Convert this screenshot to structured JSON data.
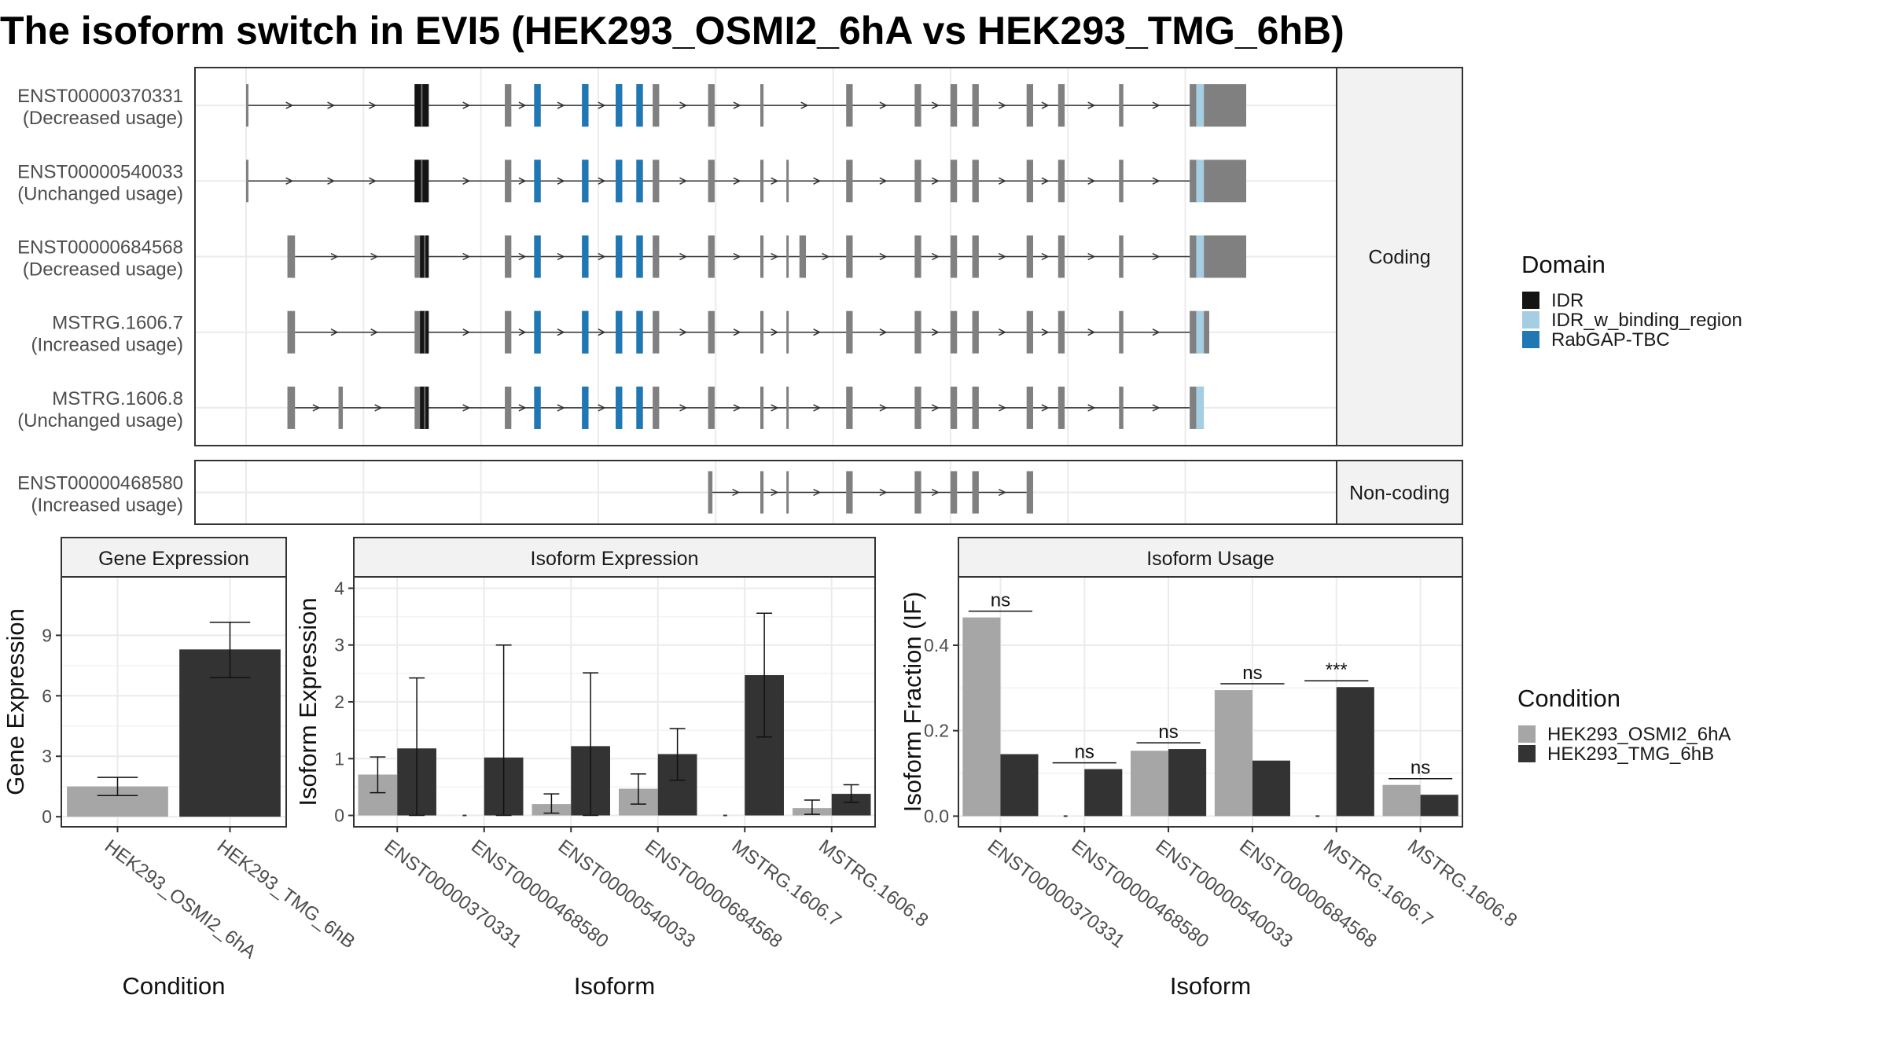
{
  "title": "The isoform switch in EVI5 (HEK293_OSMI2_6hA vs HEK293_TMG_6hB)",
  "colors": {
    "intron": "#333333",
    "exon": "#808080",
    "IDR": "#141414",
    "IDR_w_binding_region": "#a6cee3",
    "RabGAP-TBC": "#1f78b4",
    "HEK293_OSMI2_6hA": "#a6a6a6",
    "HEK293_TMG_6hB": "#333333",
    "grid": "#ebebeb",
    "strip": "#f2f2f2"
  },
  "structure": {
    "facets": [
      "Coding",
      "Non-coding"
    ],
    "coding": [
      {
        "label": "ENST00000370331\n(Decreased usage)",
        "tx": "ENST00000370331",
        "exons": [
          [
            0,
            0.2
          ],
          [
            15.5,
            16.8
          ],
          [
            23.8,
            24.4
          ],
          [
            26.5,
            27.1
          ],
          [
            30.9,
            31.5
          ],
          [
            34.0,
            34.6
          ],
          [
            35.9,
            36.5
          ],
          [
            37.4,
            38.0
          ],
          [
            42.5,
            43.1
          ],
          [
            47.3,
            47.6
          ],
          [
            55.2,
            55.8
          ],
          [
            61.5,
            62.1
          ],
          [
            64.8,
            65.4
          ],
          [
            66.8,
            67.4
          ],
          [
            71.8,
            72.4
          ],
          [
            74.7,
            75.3
          ],
          [
            80.3,
            80.7
          ],
          [
            86.8,
            87.6
          ],
          [
            88.1,
            92.0
          ]
        ],
        "domains": [
          [
            "IDR",
            15.5,
            16.8
          ],
          [
            "RabGAP-TBC",
            26.5,
            27.1
          ],
          [
            "RabGAP-TBC",
            30.9,
            31.5
          ],
          [
            "RabGAP-TBC",
            34.0,
            34.6
          ],
          [
            "RabGAP-TBC",
            35.9,
            36.5
          ],
          [
            "IDR_w_binding_region",
            87.4,
            88.1
          ]
        ]
      },
      {
        "label": "ENST00000540033\n(Unchanged usage)",
        "tx": "ENST00000540033",
        "exons": [
          [
            0,
            0.2
          ],
          [
            15.5,
            16.8
          ],
          [
            23.8,
            24.4
          ],
          [
            26.5,
            27.1
          ],
          [
            30.9,
            31.5
          ],
          [
            34.0,
            34.6
          ],
          [
            35.9,
            36.5
          ],
          [
            37.4,
            38.0
          ],
          [
            42.5,
            43.1
          ],
          [
            47.3,
            47.6
          ],
          [
            49.7,
            49.9
          ],
          [
            55.2,
            55.8
          ],
          [
            61.5,
            62.1
          ],
          [
            64.8,
            65.4
          ],
          [
            66.8,
            67.4
          ],
          [
            71.8,
            72.4
          ],
          [
            74.7,
            75.3
          ],
          [
            80.3,
            80.7
          ],
          [
            86.8,
            87.6
          ],
          [
            88.1,
            92.0
          ]
        ],
        "domains": [
          [
            "IDR",
            15.5,
            16.8
          ],
          [
            "RabGAP-TBC",
            26.5,
            27.1
          ],
          [
            "RabGAP-TBC",
            30.9,
            31.5
          ],
          [
            "RabGAP-TBC",
            34.0,
            34.6
          ],
          [
            "RabGAP-TBC",
            35.9,
            36.5
          ],
          [
            "IDR_w_binding_region",
            87.4,
            88.1
          ]
        ]
      },
      {
        "label": "ENST00000684568\n(Decreased usage)",
        "tx": "ENST00000684568",
        "exons": [
          [
            3.8,
            4.5
          ],
          [
            15.5,
            16.8
          ],
          [
            23.8,
            24.4
          ],
          [
            26.5,
            27.1
          ],
          [
            30.9,
            31.5
          ],
          [
            34.0,
            34.6
          ],
          [
            35.9,
            36.5
          ],
          [
            37.4,
            38.0
          ],
          [
            42.5,
            43.1
          ],
          [
            47.3,
            47.6
          ],
          [
            49.7,
            49.9
          ],
          [
            50.9,
            51.5
          ],
          [
            55.2,
            55.8
          ],
          [
            61.5,
            62.1
          ],
          [
            64.8,
            65.4
          ],
          [
            66.8,
            67.4
          ],
          [
            71.8,
            72.4
          ],
          [
            74.7,
            75.3
          ],
          [
            80.3,
            80.7
          ],
          [
            86.8,
            87.6
          ],
          [
            88.1,
            92.0
          ]
        ],
        "domains": [
          [
            "IDR",
            16.0,
            16.8
          ],
          [
            "RabGAP-TBC",
            26.5,
            27.1
          ],
          [
            "RabGAP-TBC",
            30.9,
            31.5
          ],
          [
            "RabGAP-TBC",
            34.0,
            34.6
          ],
          [
            "RabGAP-TBC",
            35.9,
            36.5
          ],
          [
            "IDR_w_binding_region",
            87.4,
            88.1
          ]
        ]
      },
      {
        "label": "MSTRG.1606.7\n(Increased usage)",
        "tx": "MSTRG.1606.7",
        "exons": [
          [
            3.8,
            4.5
          ],
          [
            15.5,
            16.8
          ],
          [
            23.8,
            24.4
          ],
          [
            26.5,
            27.1
          ],
          [
            30.9,
            31.5
          ],
          [
            34.0,
            34.6
          ],
          [
            35.9,
            36.5
          ],
          [
            37.4,
            38.0
          ],
          [
            42.5,
            43.1
          ],
          [
            47.3,
            47.6
          ],
          [
            49.7,
            49.9
          ],
          [
            55.2,
            55.8
          ],
          [
            61.5,
            62.1
          ],
          [
            64.8,
            65.4
          ],
          [
            66.8,
            67.4
          ],
          [
            71.8,
            72.4
          ],
          [
            74.7,
            75.3
          ],
          [
            80.3,
            80.7
          ],
          [
            86.8,
            87.6
          ],
          [
            88.1,
            88.6
          ]
        ],
        "domains": [
          [
            "IDR",
            16.0,
            16.8
          ],
          [
            "RabGAP-TBC",
            26.5,
            27.1
          ],
          [
            "RabGAP-TBC",
            30.9,
            31.5
          ],
          [
            "RabGAP-TBC",
            34.0,
            34.6
          ],
          [
            "RabGAP-TBC",
            35.9,
            36.5
          ],
          [
            "IDR_w_binding_region",
            87.4,
            88.1
          ]
        ]
      },
      {
        "label": "MSTRG.1606.8\n(Unchanged usage)",
        "tx": "MSTRG.1606.8",
        "exons": [
          [
            3.8,
            4.5
          ],
          [
            8.5,
            8.9
          ],
          [
            15.5,
            16.8
          ],
          [
            23.8,
            24.4
          ],
          [
            26.5,
            27.1
          ],
          [
            30.9,
            31.5
          ],
          [
            34.0,
            34.6
          ],
          [
            35.9,
            36.5
          ],
          [
            37.4,
            38.0
          ],
          [
            42.5,
            43.1
          ],
          [
            47.3,
            47.6
          ],
          [
            49.7,
            49.9
          ],
          [
            55.2,
            55.8
          ],
          [
            61.5,
            62.1
          ],
          [
            64.8,
            65.4
          ],
          [
            66.8,
            67.4
          ],
          [
            71.8,
            72.4
          ],
          [
            74.7,
            75.3
          ],
          [
            80.3,
            80.7
          ],
          [
            86.8,
            88.1
          ]
        ],
        "domains": [
          [
            "IDR",
            16.0,
            16.8
          ],
          [
            "RabGAP-TBC",
            26.5,
            27.1
          ],
          [
            "RabGAP-TBC",
            30.9,
            31.5
          ],
          [
            "RabGAP-TBC",
            34.0,
            34.6
          ],
          [
            "RabGAP-TBC",
            35.9,
            36.5
          ],
          [
            "IDR_w_binding_region",
            87.4,
            88.1
          ]
        ]
      }
    ],
    "noncoding": [
      {
        "label": "ENST00000468580\n(Increased usage)",
        "tx": "ENST00000468580",
        "exons": [
          [
            42.5,
            42.9
          ],
          [
            47.3,
            47.6
          ],
          [
            49.7,
            49.9
          ],
          [
            55.2,
            55.8
          ],
          [
            61.5,
            62.1
          ],
          [
            64.8,
            65.4
          ],
          [
            66.8,
            67.4
          ],
          [
            71.8,
            72.4
          ]
        ],
        "domains": []
      }
    ]
  },
  "legend_domain": {
    "title": "Domain",
    "items": [
      "IDR",
      "IDR_w_binding_region",
      "RabGAP-TBC"
    ]
  },
  "legend_condition": {
    "title": "Condition",
    "items": [
      "HEK293_OSMI2_6hA",
      "HEK293_TMG_6hB"
    ]
  },
  "chart_data": [
    {
      "type": "bar",
      "title": "Gene Expression",
      "xlabel": "Condition",
      "ylabel": "Gene Expression",
      "categories": [
        "HEK293_OSMI2_6hA",
        "HEK293_TMG_6hB"
      ],
      "values": [
        1.5,
        8.3
      ],
      "err_low": [
        1.05,
        6.9
      ],
      "err_high": [
        1.95,
        9.65
      ],
      "yticks": [
        0,
        3,
        6,
        9
      ],
      "ylim": [
        -0.5,
        11.9
      ]
    },
    {
      "type": "bar",
      "title": "Isoform Expression",
      "xlabel": "Isoform",
      "ylabel": "Isoform Expression",
      "categories": [
        "ENST00000370331",
        "ENST00000468580",
        "ENST00000540033",
        "ENST00000684568",
        "MSTRG.1606.7",
        "MSTRG.1606.8"
      ],
      "series": [
        {
          "name": "HEK293_OSMI2_6hA",
          "values": [
            0.72,
            0.0,
            0.2,
            0.47,
            0.0,
            0.13
          ],
          "err_low": [
            0.4,
            0.0,
            0.04,
            0.2,
            0.0,
            0.02
          ],
          "err_high": [
            1.03,
            0.0,
            0.38,
            0.73,
            0.0,
            0.27
          ]
        },
        {
          "name": "HEK293_TMG_6hB",
          "values": [
            1.18,
            1.02,
            1.22,
            1.08,
            2.47,
            0.38
          ],
          "err_low": [
            0.0,
            0.0,
            0.0,
            0.62,
            1.38,
            0.23
          ],
          "err_high": [
            2.42,
            3.0,
            2.51,
            1.53,
            3.56,
            0.54
          ]
        }
      ],
      "yticks": [
        0,
        1,
        2,
        3,
        4
      ],
      "ylim": [
        -0.2,
        4.2
      ]
    },
    {
      "type": "bar",
      "title": "Isoform Usage",
      "xlabel": "Isoform",
      "ylabel": "Isoform Fraction (IF)",
      "categories": [
        "ENST00000370331",
        "ENST00000468580",
        "ENST00000540033",
        "ENST00000684568",
        "MSTRG.1606.7",
        "MSTRG.1606.8"
      ],
      "series": [
        {
          "name": "HEK293_OSMI2_6hA",
          "values": [
            0.465,
            0.0,
            0.153,
            0.295,
            0.0,
            0.073
          ]
        },
        {
          "name": "HEK293_TMG_6hB",
          "values": [
            0.145,
            0.11,
            0.157,
            0.13,
            0.302,
            0.05
          ]
        }
      ],
      "significance": [
        "ns",
        "ns",
        "ns",
        "ns",
        "***",
        "ns"
      ],
      "yticks": [
        0.0,
        0.2,
        0.4
      ],
      "ylim": [
        -0.025,
        0.56
      ]
    }
  ]
}
